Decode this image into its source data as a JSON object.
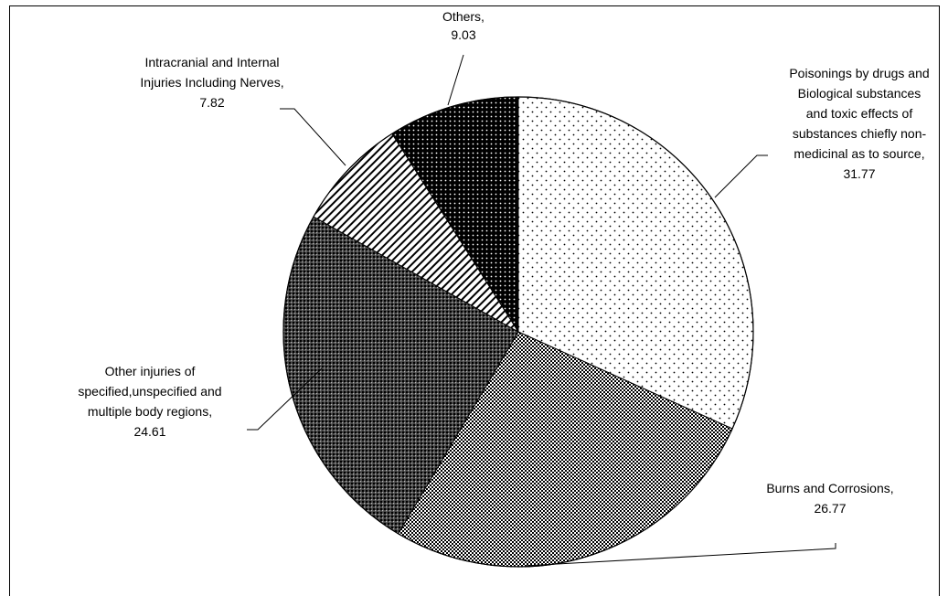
{
  "chart_data": {
    "type": "pie",
    "title": "",
    "slices": [
      {
        "lines": [
          "Poisonings by drugs and",
          "Biological substances",
          "and toxic effects of",
          "substances chiefly non-",
          "medicinal as to source,"
        ],
        "value": 31.77,
        "value_label": "31.77",
        "pattern": "dots-sparse"
      },
      {
        "lines": [
          "Burns and Corrosions,"
        ],
        "value": 26.77,
        "value_label": "26.77",
        "pattern": "checker-fine"
      },
      {
        "lines": [
          "Other injuries of",
          "specified,unspecified and",
          "multiple body regions,"
        ],
        "value": 24.61,
        "value_label": "24.61",
        "pattern": "checker-dark"
      },
      {
        "lines": [
          "Intracranial and Internal",
          "Injuries Including Nerves,"
        ],
        "value": 7.82,
        "value_label": "7.82",
        "pattern": "diagonal-hatch"
      },
      {
        "lines": [
          "Others,"
        ],
        "value": 9.03,
        "value_label": "9.03",
        "pattern": "dots-dense-black"
      }
    ],
    "start_angle": "12 o'clock",
    "direction": "clockwise",
    "legend": "none",
    "colors": {
      "stroke": "#000000",
      "background": "#ffffff"
    }
  }
}
